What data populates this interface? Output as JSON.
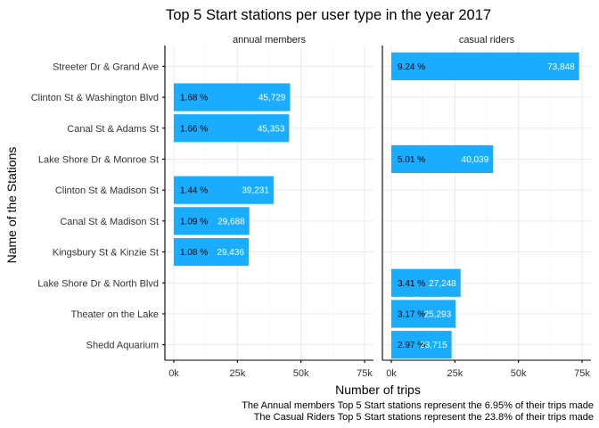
{
  "chart_data": {
    "type": "bar",
    "orientation": "horizontal",
    "title": "Top 5 Start stations per user type in the year 2017",
    "xlabel": "Number of trips",
    "ylabel": "Name of the Stations",
    "xlim": [
      0,
      75000
    ],
    "x_ticks": [
      "0k",
      "25k",
      "50k",
      "75k"
    ],
    "grid": true,
    "categories": [
      "Streeter Dr & Grand Ave",
      "Clinton St & Washington Blvd",
      "Canal St & Adams St",
      "Lake Shore Dr & Monroe St",
      "Clinton St & Madison St",
      "Canal St & Madison St",
      "Kingsbury St & Kinzie St",
      "Lake Shore Dr & North Blvd",
      "Theater on the Lake",
      "Shedd Aquarium"
    ],
    "bar_color": "#1AADFF",
    "panels": [
      {
        "name": "annual members",
        "bars": [
          {
            "category": "Clinton St & Washington Blvd",
            "value": 45729,
            "value_label": "45,729",
            "pct_label": "1.68 %"
          },
          {
            "category": "Canal St & Adams St",
            "value": 45353,
            "value_label": "45,353",
            "pct_label": "1.66 %"
          },
          {
            "category": "Clinton St & Madison St",
            "value": 39231,
            "value_label": "39,231",
            "pct_label": "1.44 %"
          },
          {
            "category": "Canal St & Madison St",
            "value": 29688,
            "value_label": "29,688",
            "pct_label": "1.09 %"
          },
          {
            "category": "Kingsbury St & Kinzie St",
            "value": 29436,
            "value_label": "29,436",
            "pct_label": "1.08 %"
          }
        ]
      },
      {
        "name": "casual riders",
        "bars": [
          {
            "category": "Streeter Dr & Grand Ave",
            "value": 73848,
            "value_label": "73,848",
            "pct_label": "9.24 %"
          },
          {
            "category": "Lake Shore Dr & Monroe St",
            "value": 40039,
            "value_label": "40,039",
            "pct_label": "5.01 %"
          },
          {
            "category": "Lake Shore Dr & North Blvd",
            "value": 27248,
            "value_label": "27,248",
            "pct_label": "3.41 %"
          },
          {
            "category": "Theater on the Lake",
            "value": 25293,
            "value_label": "25,293",
            "pct_label": "3.17 %"
          },
          {
            "category": "Shedd Aquarium",
            "value": 23715,
            "value_label": "23,715",
            "pct_label": "2.97 %"
          }
        ]
      }
    ],
    "caption": [
      "The Annual members Top 5 Start stations represent the 6.95% of their trips made",
      "The Casual Riders Top 5 Start stations represent the 23.8% of their trips made"
    ]
  }
}
